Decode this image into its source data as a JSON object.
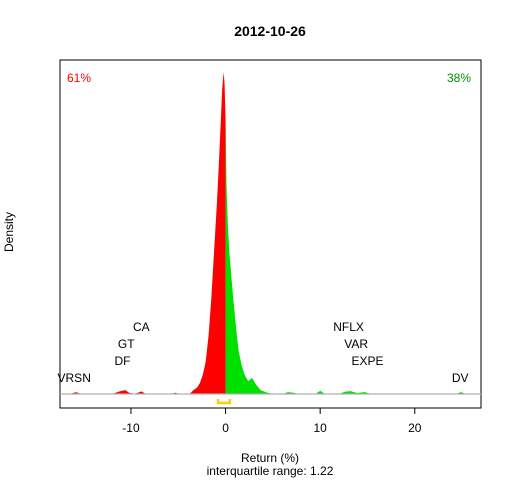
{
  "chart_data": {
    "type": "area",
    "title": "2012-10-26",
    "xlabel": "Return (%)",
    "ylabel": "Density",
    "subtitle": "interquartile range: 1.22",
    "xlim": [
      -17.5,
      27
    ],
    "ylim": [
      0,
      1
    ],
    "xticks": [
      -10,
      0,
      10,
      20
    ],
    "percent_negative": "61%",
    "percent_positive": "38%",
    "colors": {
      "negative": "#ff0000",
      "positive": "#00e000",
      "baseline": "#b0b0b0",
      "iqr_marker": "#ffcc00"
    },
    "density": [
      [
        -16.5,
        0.0
      ],
      [
        -15.8,
        0.006
      ],
      [
        -15.3,
        0.0
      ],
      [
        -12.0,
        0.0
      ],
      [
        -11.2,
        0.008
      ],
      [
        -10.6,
        0.012
      ],
      [
        -10.2,
        0.004
      ],
      [
        -9.6,
        0.0
      ],
      [
        -8.9,
        0.008
      ],
      [
        -8.4,
        0.0
      ],
      [
        -5.8,
        0.0
      ],
      [
        -5.3,
        0.004
      ],
      [
        -4.9,
        0.0
      ],
      [
        -3.8,
        0.0
      ],
      [
        -3.4,
        0.012
      ],
      [
        -3.0,
        0.02
      ],
      [
        -2.7,
        0.035
      ],
      [
        -2.4,
        0.06
      ],
      [
        -2.1,
        0.1
      ],
      [
        -1.8,
        0.18
      ],
      [
        -1.5,
        0.3
      ],
      [
        -1.2,
        0.45
      ],
      [
        -0.9,
        0.6
      ],
      [
        -0.7,
        0.72
      ],
      [
        -0.5,
        0.85
      ],
      [
        -0.35,
        0.95
      ],
      [
        -0.2,
        1.0
      ],
      [
        -0.1,
        0.96
      ],
      [
        0.0,
        0.85
      ],
      [
        0.1,
        0.65
      ],
      [
        0.25,
        0.52
      ],
      [
        0.4,
        0.44
      ],
      [
        0.6,
        0.37
      ],
      [
        0.8,
        0.3
      ],
      [
        1.0,
        0.24
      ],
      [
        1.2,
        0.18
      ],
      [
        1.4,
        0.13
      ],
      [
        1.7,
        0.09
      ],
      [
        2.0,
        0.06
      ],
      [
        2.4,
        0.04
      ],
      [
        2.8,
        0.05
      ],
      [
        3.2,
        0.03
      ],
      [
        3.7,
        0.012
      ],
      [
        4.3,
        0.005
      ],
      [
        5.0,
        0.0
      ],
      [
        6.0,
        0.0
      ],
      [
        6.6,
        0.006
      ],
      [
        7.2,
        0.004
      ],
      [
        7.8,
        0.0
      ],
      [
        9.5,
        0.0
      ],
      [
        10.0,
        0.01
      ],
      [
        10.5,
        0.0
      ],
      [
        12.0,
        0.0
      ],
      [
        12.6,
        0.007
      ],
      [
        13.2,
        0.009
      ],
      [
        13.9,
        0.003
      ],
      [
        14.7,
        0.006
      ],
      [
        15.4,
        0.0
      ],
      [
        24.3,
        0.0
      ],
      [
        24.9,
        0.006
      ],
      [
        25.4,
        0.0
      ]
    ],
    "annotations": [
      {
        "text": "VRSN",
        "x": -16.0,
        "level": 0
      },
      {
        "text": "DF",
        "x": -10.9,
        "level": 1
      },
      {
        "text": "GT",
        "x": -10.5,
        "level": 2
      },
      {
        "text": "CA",
        "x": -8.9,
        "level": 3
      },
      {
        "text": "DV",
        "x": 24.8,
        "level": 0
      },
      {
        "text": "EXPE",
        "x": 15.0,
        "level": 1
      },
      {
        "text": "VAR",
        "x": 13.8,
        "level": 2
      },
      {
        "text": "NFLX",
        "x": 13.0,
        "level": 3
      }
    ],
    "iqr": [
      -0.8,
      0.45
    ]
  }
}
